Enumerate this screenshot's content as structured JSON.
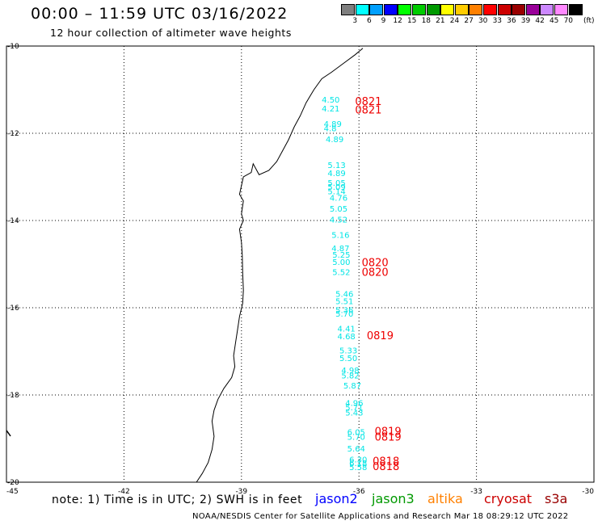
{
  "header": {
    "title": "00:00 – 11:59 UTC 03/16/2022",
    "subtitle": "12 hour collection of altimeter wave heights"
  },
  "legend": {
    "unit": "(ft)",
    "bins": [
      {
        "label": "3",
        "color": "#7f7f7f"
      },
      {
        "label": "6",
        "color": "#00ffff"
      },
      {
        "label": "9",
        "color": "#00a0ff"
      },
      {
        "label": "12",
        "color": "#0000ff"
      },
      {
        "label": "15",
        "color": "#00ff00"
      },
      {
        "label": "18",
        "color": "#00cc00"
      },
      {
        "label": "21",
        "color": "#009900"
      },
      {
        "label": "24",
        "color": "#ffff00"
      },
      {
        "label": "27",
        "color": "#ffcc00"
      },
      {
        "label": "30",
        "color": "#ff8000"
      },
      {
        "label": "33",
        "color": "#ff0000"
      },
      {
        "label": "36",
        "color": "#cc0000"
      },
      {
        "label": "39",
        "color": "#990000"
      },
      {
        "label": "42",
        "color": "#990099"
      },
      {
        "label": "45",
        "color": "#cc88ff"
      },
      {
        "label": "70",
        "color": "#ff88ff"
      },
      {
        "label": "",
        "color": "#000000"
      }
    ]
  },
  "map": {
    "lon_range": [
      -45,
      -30
    ],
    "lat_range": [
      -20,
      -10
    ],
    "lon_ticks": [
      {
        "value": -45,
        "label": "-45"
      },
      {
        "value": -42,
        "label": "-42"
      },
      {
        "value": -39,
        "label": "-39"
      },
      {
        "value": -36,
        "label": "-36"
      },
      {
        "value": -33,
        "label": "-33"
      },
      {
        "value": -30,
        "label": "-30"
      }
    ],
    "lat_ticks": [
      {
        "value": -10,
        "label": "-10"
      },
      {
        "value": -12,
        "label": "-12"
      },
      {
        "value": -14,
        "label": "-14"
      },
      {
        "value": -16,
        "label": "-16"
      },
      {
        "value": -18,
        "label": "-18"
      },
      {
        "value": -20,
        "label": "-20"
      }
    ],
    "coastline": [
      [
        -35.9,
        -10.05
      ],
      [
        -36.1,
        -10.2
      ],
      [
        -36.4,
        -10.4
      ],
      [
        -36.7,
        -10.6
      ],
      [
        -36.95,
        -10.75
      ],
      [
        -37.15,
        -11.0
      ],
      [
        -37.35,
        -11.3
      ],
      [
        -37.5,
        -11.6
      ],
      [
        -37.65,
        -11.85
      ],
      [
        -37.8,
        -12.15
      ],
      [
        -37.95,
        -12.4
      ],
      [
        -38.1,
        -12.65
      ],
      [
        -38.3,
        -12.85
      ],
      [
        -38.55,
        -12.95
      ],
      [
        -38.7,
        -12.7
      ],
      [
        -38.75,
        -12.9
      ],
      [
        -38.95,
        -13.0
      ],
      [
        -39.05,
        -13.4
      ],
      [
        -38.95,
        -13.55
      ],
      [
        -39.0,
        -13.85
      ],
      [
        -38.95,
        -14.0
      ],
      [
        -39.05,
        -14.2
      ],
      [
        -39.0,
        -14.5
      ],
      [
        -38.98,
        -14.8
      ],
      [
        -38.97,
        -15.2
      ],
      [
        -38.95,
        -15.6
      ],
      [
        -38.97,
        -15.9
      ],
      [
        -39.05,
        -16.2
      ],
      [
        -39.1,
        -16.5
      ],
      [
        -39.15,
        -16.8
      ],
      [
        -39.2,
        -17.1
      ],
      [
        -39.17,
        -17.35
      ],
      [
        -39.25,
        -17.6
      ],
      [
        -39.45,
        -17.85
      ],
      [
        -39.6,
        -18.1
      ],
      [
        -39.7,
        -18.35
      ],
      [
        -39.75,
        -18.6
      ],
      [
        -39.7,
        -18.95
      ],
      [
        -39.75,
        -19.25
      ],
      [
        -39.85,
        -19.55
      ],
      [
        -40.0,
        -19.8
      ],
      [
        -40.15,
        -20.0
      ]
    ],
    "wave_heights": [
      {
        "lon": -36.95,
        "lat": -11.3,
        "swh": "4.50"
      },
      {
        "lon": -36.95,
        "lat": -11.5,
        "swh": "4.21"
      },
      {
        "lon": -36.9,
        "lat": -11.85,
        "swh": "4.89"
      },
      {
        "lon": -36.9,
        "lat": -11.95,
        "swh": "4.8"
      },
      {
        "lon": -36.85,
        "lat": -12.2,
        "swh": "4.89"
      },
      {
        "lon": -36.8,
        "lat": -12.8,
        "swh": "5.13"
      },
      {
        "lon": -36.8,
        "lat": -12.98,
        "swh": "4.89"
      },
      {
        "lon": -36.8,
        "lat": -13.2,
        "swh": "5.05"
      },
      {
        "lon": -36.8,
        "lat": -13.3,
        "swh": "5.09"
      },
      {
        "lon": -36.8,
        "lat": -13.4,
        "swh": "5.14"
      },
      {
        "lon": -36.75,
        "lat": -13.55,
        "swh": "4.76"
      },
      {
        "lon": -36.75,
        "lat": -13.8,
        "swh": "5.05"
      },
      {
        "lon": -36.75,
        "lat": -14.05,
        "swh": "4.52"
      },
      {
        "lon": -36.7,
        "lat": -14.4,
        "swh": "5.16"
      },
      {
        "lon": -36.7,
        "lat": -14.7,
        "swh": "4.87"
      },
      {
        "lon": -36.68,
        "lat": -14.85,
        "swh": "5.25"
      },
      {
        "lon": -36.68,
        "lat": -15.02,
        "swh": "5.00"
      },
      {
        "lon": -36.68,
        "lat": -15.25,
        "swh": "5.52"
      },
      {
        "lon": -36.6,
        "lat": -15.75,
        "swh": "5.46"
      },
      {
        "lon": -36.6,
        "lat": -15.92,
        "swh": "5.51"
      },
      {
        "lon": -36.6,
        "lat": -16.12,
        "swh": "5.36"
      },
      {
        "lon": -36.6,
        "lat": -16.2,
        "swh": "5.70"
      },
      {
        "lon": -36.55,
        "lat": -16.55,
        "swh": "4.41"
      },
      {
        "lon": -36.55,
        "lat": -16.72,
        "swh": "4.68"
      },
      {
        "lon": -36.5,
        "lat": -17.05,
        "swh": "5.33"
      },
      {
        "lon": -36.5,
        "lat": -17.22,
        "swh": "5.50"
      },
      {
        "lon": -36.45,
        "lat": -17.5,
        "swh": "4.98"
      },
      {
        "lon": -36.45,
        "lat": -17.62,
        "swh": "5.82"
      },
      {
        "lon": -36.4,
        "lat": -17.85,
        "swh": "5.87"
      },
      {
        "lon": -36.35,
        "lat": -18.25,
        "swh": "4.96"
      },
      {
        "lon": -36.35,
        "lat": -18.35,
        "swh": "5.71"
      },
      {
        "lon": -36.35,
        "lat": -18.47,
        "swh": "5.43"
      },
      {
        "lon": -36.3,
        "lat": -18.92,
        "swh": "6.05"
      },
      {
        "lon": -36.3,
        "lat": -19.03,
        "swh": "5.70"
      },
      {
        "lon": -36.3,
        "lat": -19.3,
        "swh": "5.64"
      },
      {
        "lon": -36.25,
        "lat": -19.55,
        "swh": "6.30"
      },
      {
        "lon": -36.25,
        "lat": -19.63,
        "swh": "6.18"
      },
      {
        "lon": -36.25,
        "lat": -19.72,
        "swh": "5.58"
      }
    ],
    "pass_times": [
      {
        "lon": -36.1,
        "lat": -11.35,
        "label": "0821"
      },
      {
        "lon": -36.1,
        "lat": -11.55,
        "label": "0821"
      },
      {
        "lon": -35.93,
        "lat": -15.05,
        "label": "0820"
      },
      {
        "lon": -35.93,
        "lat": -15.27,
        "label": "0820"
      },
      {
        "lon": -35.8,
        "lat": -16.72,
        "label": "0819"
      },
      {
        "lon": -35.6,
        "lat": -18.92,
        "label": "0819"
      },
      {
        "lon": -35.6,
        "lat": -19.05,
        "label": "0819"
      },
      {
        "lon": -35.65,
        "lat": -19.6,
        "label": "0818"
      },
      {
        "lon": -35.65,
        "lat": -19.72,
        "label": "0818"
      }
    ]
  },
  "note": "note:  1) Time is in UTC;  2) SWH is in feet",
  "satellites": [
    {
      "name": "jason2",
      "color": "#0000ff"
    },
    {
      "name": "jason3",
      "color": "#009900"
    },
    {
      "name": "altika",
      "color": "#ff8000"
    },
    {
      "name": "cryosat",
      "color": "#cc0000"
    },
    {
      "name": "s3a",
      "color": "#990000"
    }
  ],
  "footer": "NOAA/NESDIS Center for Satellite Applications and Research    Mar 18 08:29:12 UTC 2022"
}
